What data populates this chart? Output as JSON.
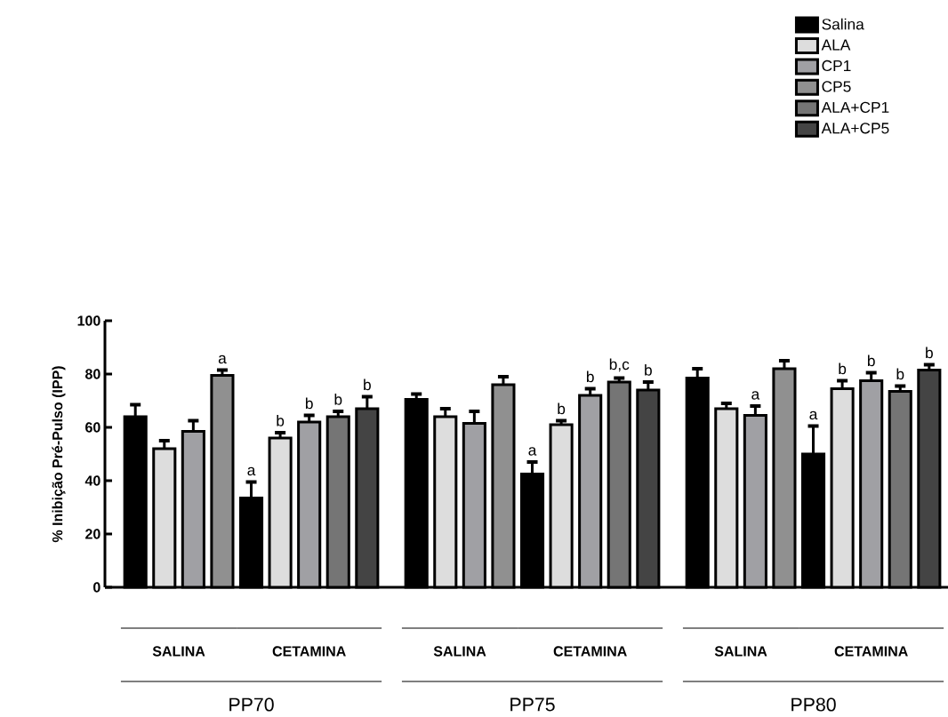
{
  "chart_data": {
    "type": "bar",
    "ylabel": "% Inibição Pré-Pulso (IPP)",
    "categories": [
      "SALINA",
      "CETAMINA",
      "SALINA",
      "CETAMINA",
      "SALINA",
      "CETAMINA"
    ],
    "series": [
      {
        "name": "Salina",
        "color": "#000000",
        "values": [
          64,
          33.5,
          70.5,
          42.5,
          78.5,
          50
        ],
        "errors": [
          4.5,
          6,
          2,
          4.5,
          3.5,
          10.5
        ],
        "value_labels": [
          null,
          "a",
          null,
          "a",
          null,
          "a"
        ]
      },
      {
        "name": "ALA",
        "color": "#dddddd",
        "values": [
          52,
          56,
          64,
          61,
          67,
          74.5
        ],
        "errors": [
          3,
          2,
          3,
          1.5,
          2,
          3
        ],
        "value_labels": [
          null,
          "b",
          null,
          "b",
          null,
          "b"
        ]
      },
      {
        "name": "CP1",
        "color": "#a0a0a4",
        "values": [
          58.5,
          62,
          61.5,
          72,
          64.5,
          77.5
        ],
        "errors": [
          4,
          2.5,
          4.5,
          2.5,
          3.5,
          3
        ],
        "value_labels": [
          null,
          "b",
          null,
          "b",
          "a",
          "b"
        ]
      },
      {
        "name": "CP5",
        "color": "#909090",
        "values": [
          79.5,
          null,
          76,
          null,
          82,
          null
        ],
        "errors": [
          2,
          null,
          3,
          null,
          3,
          null
        ],
        "value_labels": [
          "a",
          null,
          null,
          null,
          null,
          null
        ]
      },
      {
        "name": "ALA+CP1",
        "color": "#757575",
        "values": [
          null,
          64,
          null,
          77,
          null,
          73.5
        ],
        "errors": [
          null,
          2,
          null,
          1.5,
          null,
          2
        ],
        "value_labels": [
          null,
          "b",
          null,
          "b,c",
          null,
          "b"
        ]
      },
      {
        "name": "ALA+CP5",
        "color": "#444444",
        "values": [
          null,
          67,
          null,
          74,
          null,
          81.5
        ],
        "errors": [
          null,
          4.5,
          null,
          3,
          null,
          2
        ],
        "value_labels": [
          null,
          "b",
          null,
          "b",
          null,
          "b"
        ]
      }
    ],
    "ylim": [
      0,
      100
    ],
    "yticks": [
      0,
      20,
      40,
      60,
      80,
      100
    ],
    "legend": "top right",
    "annotations": [
      "PP70",
      "PP75",
      "PP80"
    ]
  }
}
